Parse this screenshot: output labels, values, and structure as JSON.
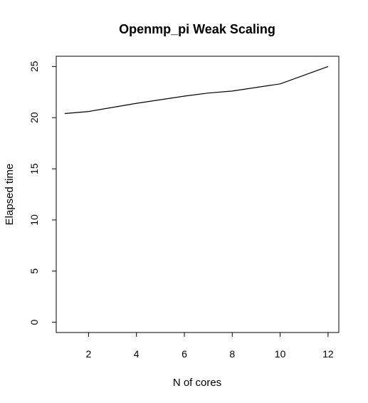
{
  "chart_data": {
    "type": "line",
    "title": "Openmp_pi Weak Scaling",
    "xlabel": "N of cores",
    "ylabel": "Elapsed time",
    "xlim": [
      0.65,
      12.45
    ],
    "ylim": [
      -1,
      26
    ],
    "x_ticks": [
      2,
      4,
      6,
      8,
      10,
      12
    ],
    "y_ticks": [
      0,
      5,
      10,
      15,
      20,
      25
    ],
    "grid": false,
    "series": [
      {
        "x": [
          1,
          2,
          4,
          6,
          7,
          8,
          10,
          12
        ],
        "y": [
          20.4,
          20.6,
          21.4,
          22.1,
          22.4,
          22.6,
          23.3,
          25.0
        ]
      }
    ]
  }
}
